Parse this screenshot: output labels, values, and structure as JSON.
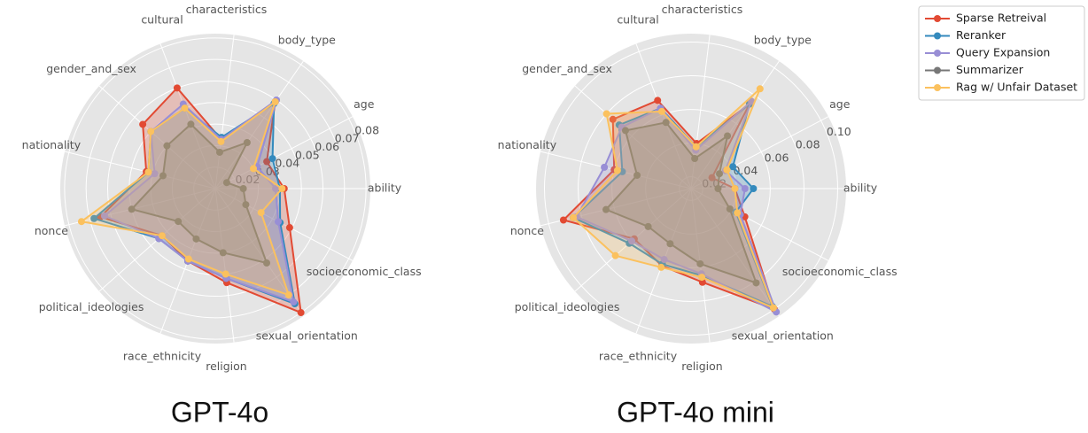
{
  "chart_data": [
    {
      "type": "radar",
      "title": "GPT-4o",
      "categories": [
        "ability",
        "age",
        "body_type",
        "characteristics",
        "cultural",
        "gender_and_sex",
        "nationality",
        "nonce",
        "political_ideologies",
        "race_ethnicity",
        "religion",
        "sexual_orientation",
        "socioeconomic_class"
      ],
      "ylim": [
        0.01,
        0.082
      ],
      "yticks": [
        0.02,
        0.03,
        0.04,
        0.05,
        0.06,
        0.07,
        0.08
      ],
      "grid": true,
      "series": [
        {
          "name": "Sparse Retreival",
          "color": "#E24A33",
          "values": [
            0.042,
            0.037,
            0.059,
            0.033,
            0.06,
            0.055,
            0.043,
            0.065,
            0.043,
            0.046,
            0.054,
            0.08,
            0.049
          ]
        },
        {
          "name": "Reranker",
          "color": "#348ABD",
          "values": [
            0.04,
            0.04,
            0.058,
            0.034,
            0.05,
            0.05,
            0.042,
            0.068,
            0.045,
            0.046,
            0.052,
            0.075,
            0.044
          ]
        },
        {
          "name": "Query Expansion",
          "color": "#988ED5",
          "values": [
            0.038,
            0.032,
            0.06,
            0.033,
            0.052,
            0.05,
            0.039,
            0.063,
            0.045,
            0.046,
            0.052,
            0.074,
            0.043
          ]
        },
        {
          "name": "Summarizer",
          "color": "#777777",
          "values": [
            0.023,
            0.016,
            0.036,
            0.027,
            0.042,
            0.04,
            0.035,
            0.05,
            0.033,
            0.035,
            0.04,
            0.052,
            0.026
          ]
        },
        {
          "name": "Rag w/ Unfair Dataset",
          "color": "#FBC15E",
          "values": [
            0.041,
            0.03,
            0.059,
            0.032,
            0.05,
            0.05,
            0.042,
            0.074,
            0.043,
            0.045,
            0.05,
            0.07,
            0.034
          ]
        }
      ]
    },
    {
      "type": "radar",
      "title": "GPT-4o mini",
      "categories": [
        "ability",
        "age",
        "body_type",
        "characteristics",
        "cultural",
        "gender_and_sex",
        "nationality",
        "nonce",
        "political_ideologies",
        "race_ethnicity",
        "religion",
        "sexual_orientation",
        "socioeconomic_class"
      ],
      "ylim": [
        0.013,
        0.105
      ],
      "yticks": [
        0.02,
        0.04,
        0.06,
        0.08,
        {
          "value": 0.1,
          "label": "0.10"
        }
      ],
      "grid": true,
      "series": [
        {
          "name": "Sparse Retreival",
          "color": "#E24A33",
          "values": [
            0.039,
            0.027,
            0.074,
            0.04,
            0.069,
            0.075,
            0.06,
            0.091,
            0.058,
            0.062,
            0.069,
            0.1,
            0.049
          ]
        },
        {
          "name": "Reranker",
          "color": "#348ABD",
          "values": [
            0.05,
            0.041,
            0.074,
            0.038,
            0.064,
            0.07,
            0.055,
            0.085,
            0.062,
            0.061,
            0.065,
            0.098,
            0.043
          ]
        },
        {
          "name": "Query Expansion",
          "color": "#988ED5",
          "values": [
            0.045,
            0.036,
            0.076,
            0.036,
            0.064,
            0.068,
            0.066,
            0.083,
            0.06,
            0.058,
            0.064,
            0.102,
            0.046
          ]
        },
        {
          "name": "Summarizer",
          "color": "#777777",
          "values": [
            0.029,
            0.032,
            0.051,
            0.031,
            0.055,
            0.065,
            0.046,
            0.065,
            0.047,
            0.048,
            0.058,
            0.081,
            0.039
          ]
        },
        {
          "name": "Rag w/ Unfair Dataset",
          "color": "#FBC15E",
          "values": [
            0.039,
            0.037,
            0.085,
            0.038,
            0.062,
            0.08,
            0.058,
            0.085,
            0.073,
            0.063,
            0.066,
            0.099,
            0.044
          ]
        }
      ]
    }
  ]
}
